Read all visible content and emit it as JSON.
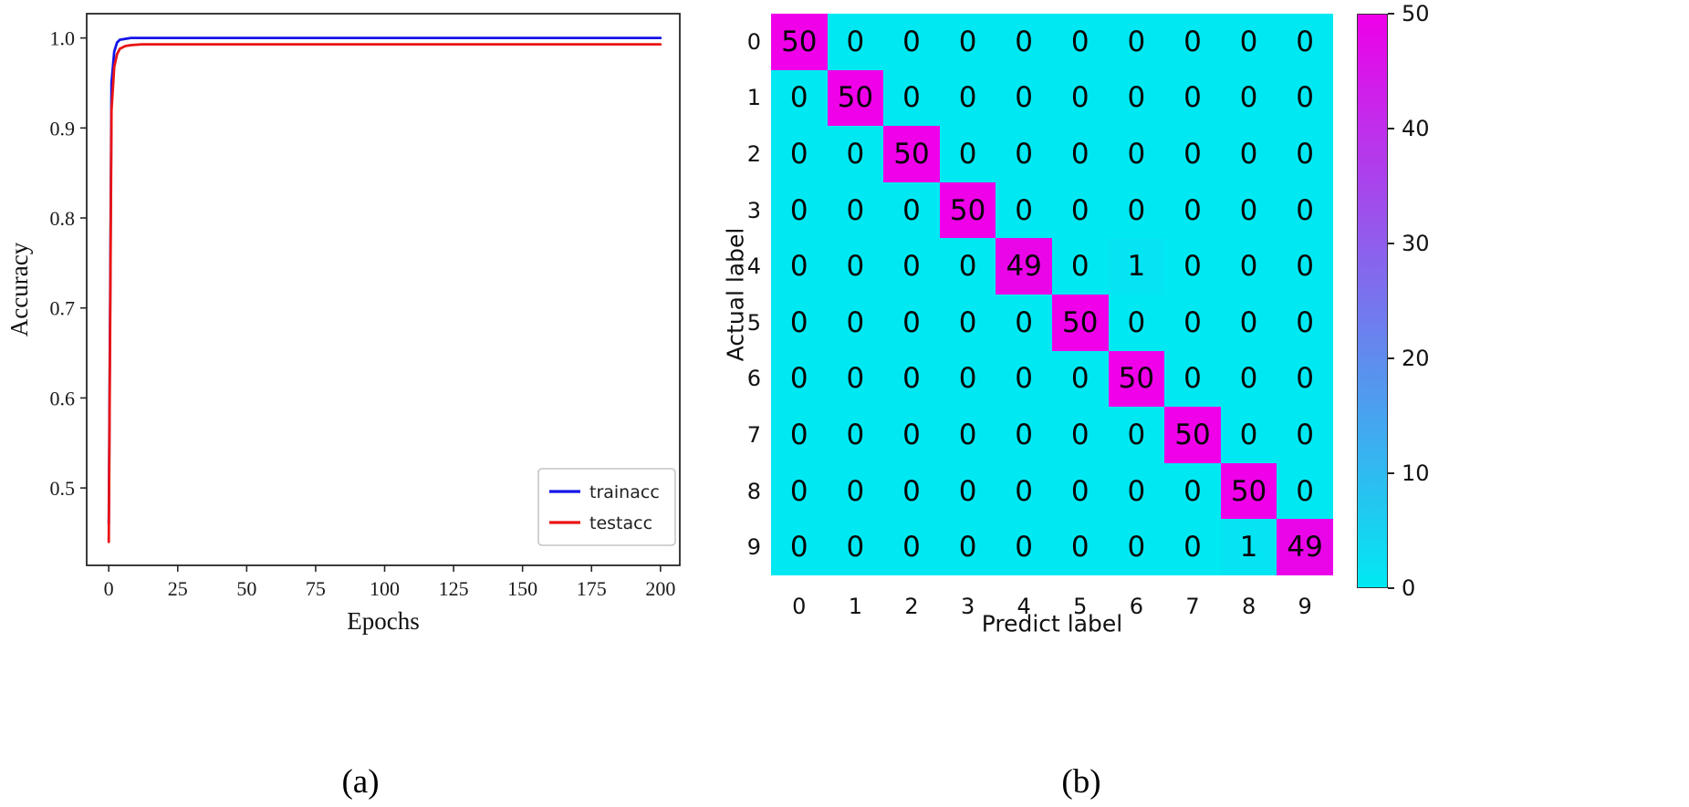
{
  "figure": {
    "background": "#ffffff",
    "caption_a": "(a)",
    "caption_b": "(b)"
  },
  "chart_data": [
    {
      "id": "accuracy_curves",
      "type": "line",
      "title": "",
      "xlabel": "Epochs",
      "ylabel": "Accuracy",
      "xlim": [
        -8,
        207
      ],
      "ylim": [
        0.414,
        1.027
      ],
      "xticks": [
        0,
        25,
        50,
        75,
        100,
        125,
        150,
        175,
        200
      ],
      "yticks": [
        0.5,
        0.6,
        0.7,
        0.8,
        0.9,
        1.0
      ],
      "grid": false,
      "legend_position": "lower right",
      "series": [
        {
          "name": "trainacc",
          "color": "#1414e8",
          "x": [
            0,
            1,
            2,
            3,
            4,
            6,
            8,
            12,
            20,
            35,
            60,
            100,
            150,
            200
          ],
          "y": [
            0.46,
            0.95,
            0.985,
            0.995,
            0.998,
            0.999,
            1.0,
            1.0,
            1.0,
            1.0,
            1.0,
            1.0,
            1.0,
            1.0
          ]
        },
        {
          "name": "testacc",
          "color": "#ea1414",
          "x": [
            0,
            1,
            2,
            3,
            4,
            6,
            8,
            12,
            20,
            35,
            60,
            100,
            150,
            200
          ],
          "y": [
            0.44,
            0.92,
            0.968,
            0.982,
            0.988,
            0.991,
            0.992,
            0.993,
            0.993,
            0.993,
            0.993,
            0.993,
            0.993,
            0.993
          ]
        }
      ]
    },
    {
      "id": "confusion_matrix",
      "type": "heatmap",
      "xlabel": "Predict label",
      "ylabel": "Actual label",
      "x_categories": [
        "0",
        "1",
        "2",
        "3",
        "4",
        "5",
        "6",
        "7",
        "8",
        "9"
      ],
      "y_categories": [
        "0",
        "1",
        "2",
        "3",
        "4",
        "5",
        "6",
        "7",
        "8",
        "9"
      ],
      "matrix": [
        [
          50,
          0,
          0,
          0,
          0,
          0,
          0,
          0,
          0,
          0
        ],
        [
          0,
          50,
          0,
          0,
          0,
          0,
          0,
          0,
          0,
          0
        ],
        [
          0,
          0,
          50,
          0,
          0,
          0,
          0,
          0,
          0,
          0
        ],
        [
          0,
          0,
          0,
          50,
          0,
          0,
          0,
          0,
          0,
          0
        ],
        [
          0,
          0,
          0,
          0,
          49,
          0,
          1,
          0,
          0,
          0
        ],
        [
          0,
          0,
          0,
          0,
          0,
          50,
          0,
          0,
          0,
          0
        ],
        [
          0,
          0,
          0,
          0,
          0,
          0,
          50,
          0,
          0,
          0
        ],
        [
          0,
          0,
          0,
          0,
          0,
          0,
          0,
          50,
          0,
          0
        ],
        [
          0,
          0,
          0,
          0,
          0,
          0,
          0,
          0,
          50,
          0
        ],
        [
          0,
          0,
          0,
          0,
          0,
          0,
          0,
          0,
          1,
          49
        ]
      ],
      "colormap": "cool",
      "color_low": "#00e9f2",
      "color_high": "#ef00e9",
      "vmin": 0,
      "vmax": 50,
      "colorbar_ticks": [
        0,
        10,
        20,
        30,
        40,
        50
      ],
      "colorbar_position": "right"
    }
  ]
}
